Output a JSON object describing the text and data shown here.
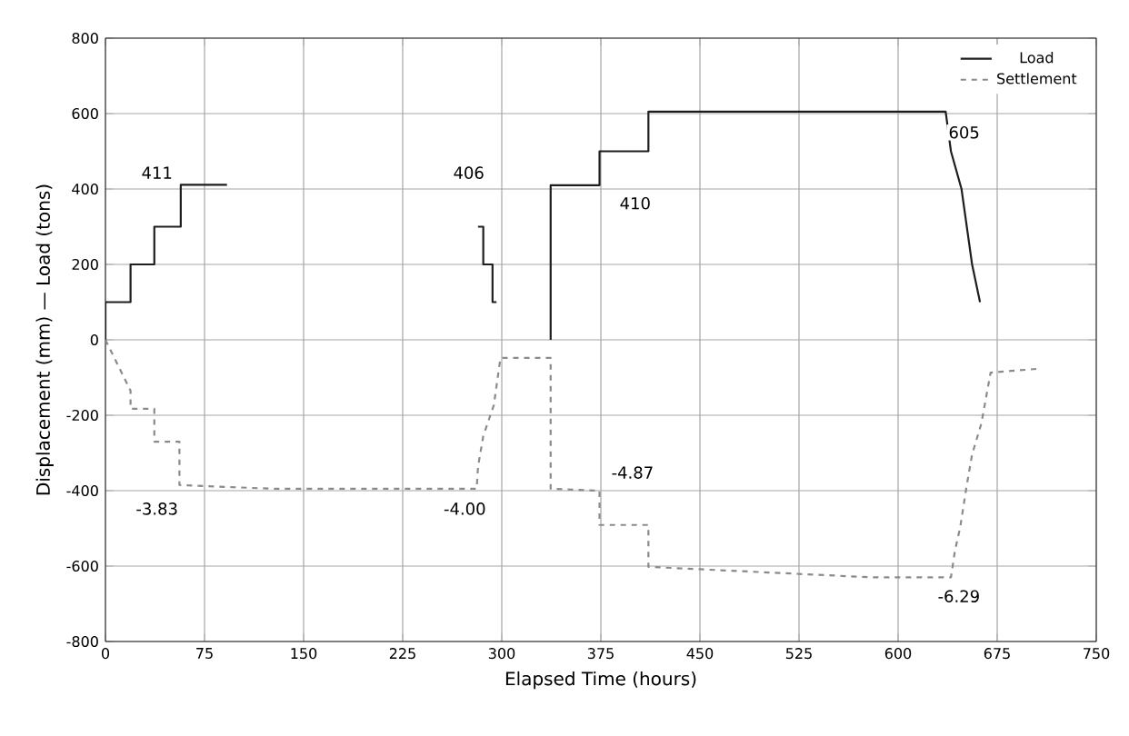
{
  "chart_data": {
    "type": "line",
    "xlabel": "Elapsed Time (hours)",
    "ylabel": "Displacement (mm) — Load (tons)",
    "xlim": [
      0,
      750
    ],
    "xticks": [
      0,
      75,
      150,
      225,
      300,
      375,
      450,
      525,
      600,
      675,
      750
    ],
    "ylim": [
      -800,
      800
    ],
    "yticks": [
      -800,
      -600,
      -400,
      -200,
      0,
      200,
      400,
      600,
      800
    ],
    "grid": true,
    "legend": "top right",
    "series": [
      {
        "name": "Load",
        "color": "#1e1e1e",
        "line_style": "solid",
        "x": [
          0,
          0,
          19,
          19,
          37,
          37,
          57,
          57,
          92,
          null,
          282,
          286,
          286,
          293,
          293,
          296,
          null,
          337,
          337,
          374,
          374,
          411,
          411,
          636,
          640,
          648,
          652,
          656,
          662
        ],
        "values": [
          0,
          100,
          100,
          200,
          200,
          300,
          300,
          411,
          411,
          null,
          300,
          300,
          200,
          200,
          100,
          100,
          null,
          0,
          410,
          410,
          500,
          500,
          605,
          605,
          500,
          400,
          300,
          200,
          100
        ]
      },
      {
        "name": "Settlement",
        "color": "#8a8a8a",
        "line_style": "dashed",
        "x": [
          0,
          19,
          19,
          37,
          37,
          56,
          56,
          127,
          281,
          282,
          286,
          294,
          299,
          337,
          337,
          374,
          374,
          411,
          411,
          581,
          640,
          643,
          647,
          652,
          656,
          663,
          670,
          705
        ],
        "values": [
          0,
          -135,
          -183,
          -183,
          -270,
          -270,
          -385,
          -395,
          -395,
          -337,
          -255,
          -173,
          -48,
          -48,
          -395,
          -400,
          -491,
          -491,
          -602,
          -630,
          -630,
          -560,
          -497,
          -385,
          -304,
          -222,
          -87,
          -77
        ]
      }
    ],
    "annotations": [
      {
        "text": "411",
        "x": 39,
        "y": 443
      },
      {
        "text": "406",
        "x": 275,
        "y": 443
      },
      {
        "text": "410",
        "x": 401,
        "y": 362
      },
      {
        "text": "605",
        "x": 650,
        "y": 550
      },
      {
        "text": "-3.83",
        "x": 39,
        "y": -448
      },
      {
        "text": "-4.00",
        "x": 272,
        "y": -448
      },
      {
        "text": "-4.87",
        "x": 399,
        "y": -352
      },
      {
        "text": "-6.29",
        "x": 646,
        "y": -680
      }
    ]
  }
}
